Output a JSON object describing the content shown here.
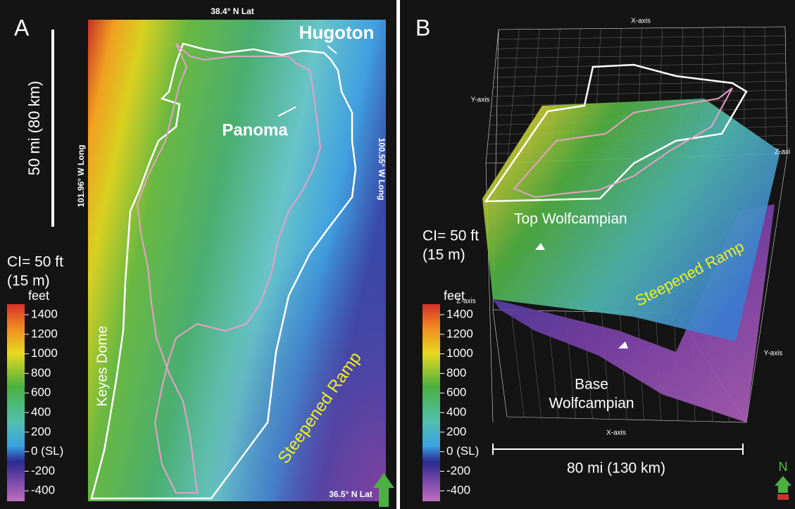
{
  "panel_a": {
    "label": "A",
    "scale_bar": "50 mi (80 km)",
    "top_lat": "38.4° N Lat",
    "bottom_lat": "36.5° N Lat",
    "left_long": "101.96° W Long",
    "right_long": "100.55° W Long",
    "hugoton": "Hugoton",
    "panoma": "Panoma",
    "keyes_dome": "Keyes Dome",
    "ramp": "Steepened Ramp",
    "ci": "CI= 50 ft",
    "ci_metric": "(15 m)",
    "legend": {
      "unit": "feet",
      "ticks": [
        "1400",
        "1200",
        "1000",
        "800",
        "600",
        "400",
        "200",
        "0 (SL)",
        "-200",
        "-400"
      ]
    }
  },
  "panel_b": {
    "label": "B",
    "x_axis_top": "X-axis",
    "y_axis_left": "Y-axis",
    "z_axis_right": "Z-axi",
    "z_axis_left": "Z-axis",
    "y_axis_right": "Y-axis",
    "x_axis_bottom": "X-axis",
    "top_surface": "Top Wolfcampian",
    "ramp": "Steepened Ramp",
    "base_surface": [
      "Base",
      "Wolfcampian"
    ],
    "scale_bar": "80 mi (130 km)",
    "north": "N",
    "ci": "CI= 50 ft",
    "ci_metric": "(15 m)",
    "legend": {
      "unit": "feet",
      "ticks": [
        "1400",
        "1200",
        "1000",
        "800",
        "600",
        "400",
        "200",
        "0 (SL)",
        "-200",
        "-400"
      ]
    }
  }
}
